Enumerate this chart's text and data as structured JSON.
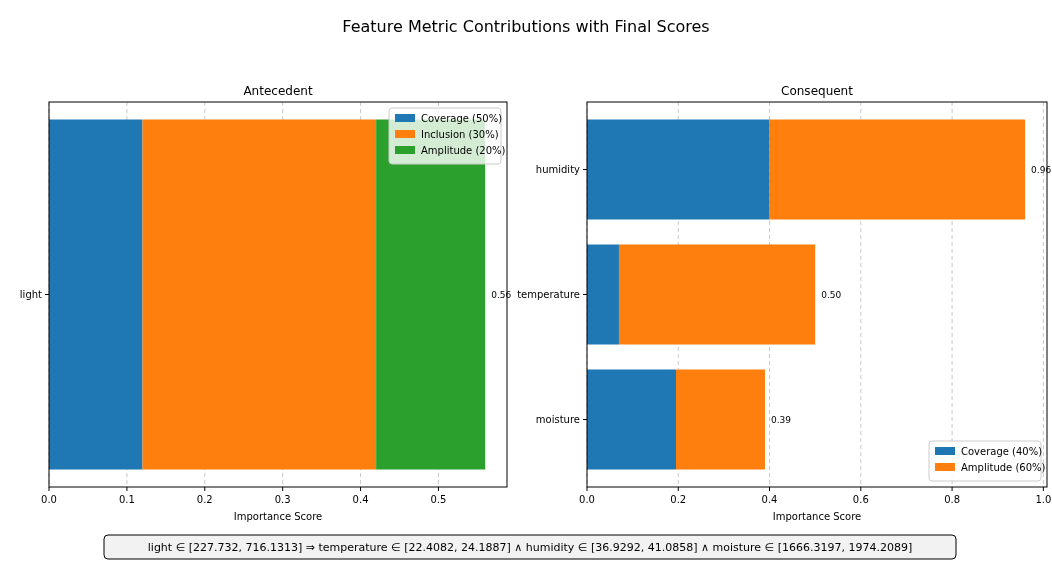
{
  "chart_data": [
    {
      "type": "bar",
      "title": "Antecedent",
      "orientation": "horizontal",
      "stacked": true,
      "categories": [
        "light"
      ],
      "series": [
        {
          "name": "Coverage (50%)",
          "color": "#1f77b4",
          "values": [
            0.12
          ]
        },
        {
          "name": "Inclusion (30%)",
          "color": "#ff7f0e",
          "values": [
            0.3
          ]
        },
        {
          "name": "Amplitude (20%)",
          "color": "#2ca02c",
          "values": [
            0.14
          ]
        }
      ],
      "totals": [
        "0.56"
      ],
      "xlabel": "Importance Score",
      "xlim": [
        0,
        0.588
      ],
      "xticks": [
        {
          "value": 0,
          "label": "0.0"
        },
        0.1,
        0.2,
        0.3,
        0.4,
        0.5
      ],
      "grid": "x",
      "legend": "top right",
      "annotations": [
        "Feature Metric Contributions with Final Scores",
        "light ∈ [227.732, 716.1313] ⇒ temperature ∈ [22.4082, 24.1887] ∧ humidity ∈ [36.9292, 41.0858] ∧ moisture ∈ [1666.3197, 1974.2089]"
      ]
    },
    {
      "type": "bar",
      "title": "Consequent",
      "orientation": "horizontal",
      "stacked": true,
      "categories": [
        "humidity",
        "temperature",
        "moisture"
      ],
      "series": [
        {
          "name": "Coverage (40%)",
          "color": "#1f77b4",
          "values": [
            0.4,
            0.07,
            0.195
          ]
        },
        {
          "name": "Amplitude (60%)",
          "color": "#ff7f0e",
          "values": [
            0.56,
            0.43,
            0.195
          ]
        }
      ],
      "totals": [
        "0.96",
        "0.50",
        "0.39"
      ],
      "xlabel": "Importance Score",
      "xlim": [
        0,
        1.008
      ],
      "xticks": [
        {
          "value": 0,
          "label": "0.0"
        },
        {
          "value": 0.2,
          "label": "0.2"
        },
        {
          "value": 0.4,
          "label": "0.4"
        },
        {
          "value": 0.6,
          "label": "0.6"
        },
        {
          "value": 0.8,
          "label": "0.8"
        },
        {
          "value": 1,
          "label": "1.0"
        }
      ],
      "grid": "x",
      "legend": "bottom right"
    }
  ]
}
